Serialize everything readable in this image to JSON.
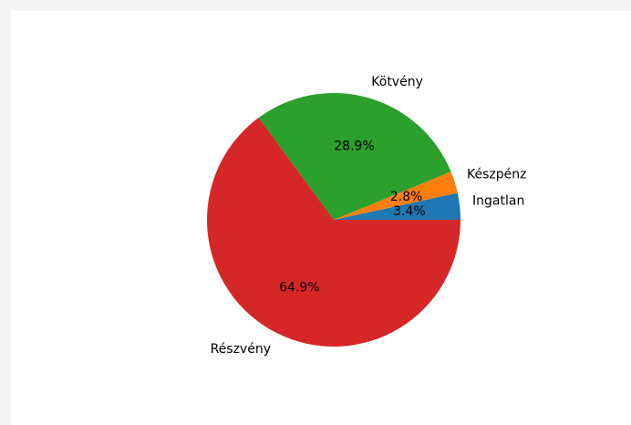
{
  "chart_data": {
    "type": "pie",
    "title": "",
    "labels": [
      "Ingatlan",
      "Készpénz",
      "Kötvény",
      "Részvény"
    ],
    "values": [
      3.4,
      2.8,
      28.9,
      64.9
    ],
    "autopct_labels": [
      "3.4%",
      "2.8%",
      "28.9%",
      "64.9%"
    ],
    "colors": [
      "#1f77b4",
      "#ff7f0e",
      "#2ca02c",
      "#d62728"
    ],
    "start_angle_deg": 0,
    "direction": "counterclockwise",
    "legend": "none"
  }
}
